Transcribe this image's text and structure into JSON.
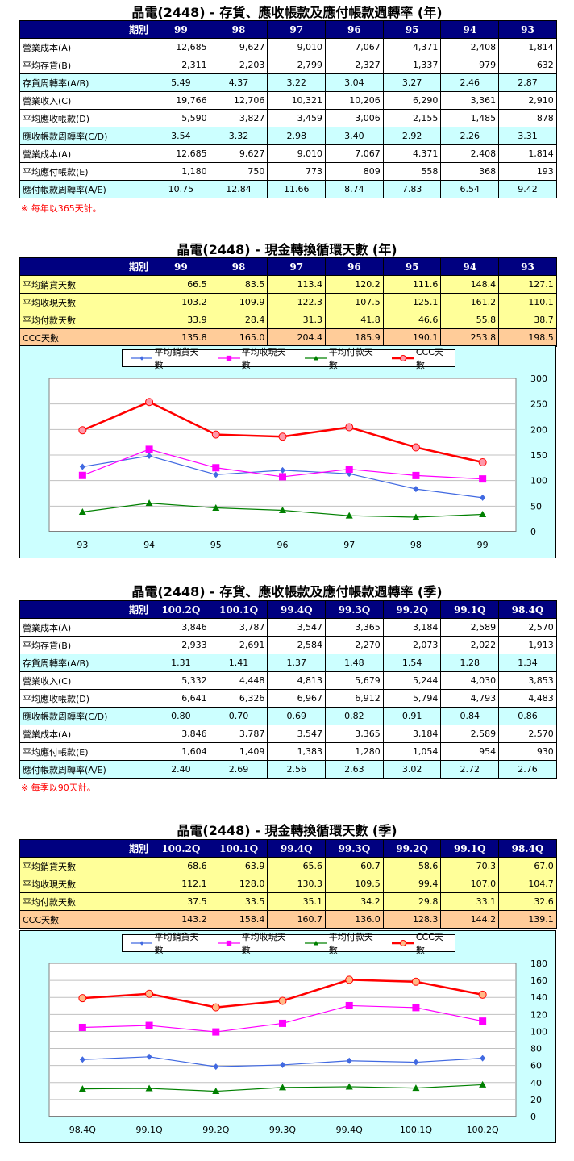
{
  "annual_turnover": {
    "title": "晶電(2448) - 存貨、應收帳款及應付帳款週轉率 (年)",
    "header_label": "期別",
    "periods": [
      "99",
      "98",
      "97",
      "96",
      "95",
      "94",
      "93"
    ],
    "rows": [
      {
        "label": "營業成本(A)",
        "style": "white",
        "values": [
          "12,685",
          "9,627",
          "9,010",
          "7,067",
          "4,371",
          "2,408",
          "1,814"
        ]
      },
      {
        "label": "平均存貨(B)",
        "style": "white",
        "values": [
          "2,311",
          "2,203",
          "2,799",
          "2,327",
          "1,337",
          "979",
          "632"
        ]
      },
      {
        "label": "存貨周轉率(A/B)",
        "style": "cyan",
        "values": [
          "5.49",
          "4.37",
          "3.22",
          "3.04",
          "3.27",
          "2.46",
          "2.87"
        ]
      },
      {
        "label": "營業收入(C)",
        "style": "white",
        "values": [
          "19,766",
          "12,706",
          "10,321",
          "10,206",
          "6,290",
          "3,361",
          "2,910"
        ]
      },
      {
        "label": "平均應收帳款(D)",
        "style": "white",
        "values": [
          "5,590",
          "3,827",
          "3,459",
          "3,006",
          "2,155",
          "1,485",
          "878"
        ]
      },
      {
        "label": "應收帳款周轉率(C/D)",
        "style": "cyan",
        "values": [
          "3.54",
          "3.32",
          "2.98",
          "3.40",
          "2.92",
          "2.26",
          "3.31"
        ]
      },
      {
        "label": "營業成本(A)",
        "style": "white",
        "values": [
          "12,685",
          "9,627",
          "9,010",
          "7,067",
          "4,371",
          "2,408",
          "1,814"
        ]
      },
      {
        "label": "平均應付帳款(E)",
        "style": "white",
        "values": [
          "1,180",
          "750",
          "773",
          "809",
          "558",
          "368",
          "193"
        ]
      },
      {
        "label": "應付帳款周轉率(A/E)",
        "style": "cyan",
        "values": [
          "10.75",
          "12.84",
          "11.66",
          "8.74",
          "7.83",
          "6.54",
          "9.42"
        ]
      }
    ],
    "note": "※ 每年以365天計。"
  },
  "annual_ccc": {
    "title": "晶電(2448) - 現金轉換循環天數 (年)",
    "header_label": "期別",
    "periods": [
      "99",
      "98",
      "97",
      "96",
      "95",
      "94",
      "93"
    ],
    "rows": [
      {
        "label": "平均銷貨天數",
        "style": "yellow",
        "values": [
          "66.5",
          "83.5",
          "113.4",
          "120.2",
          "111.6",
          "148.4",
          "127.1"
        ]
      },
      {
        "label": "平均收現天數",
        "style": "yellow",
        "values": [
          "103.2",
          "109.9",
          "122.3",
          "107.5",
          "125.1",
          "161.2",
          "110.1"
        ]
      },
      {
        "label": "平均付款天數",
        "style": "yellow",
        "values": [
          "33.9",
          "28.4",
          "31.3",
          "41.8",
          "46.6",
          "55.8",
          "38.7"
        ]
      },
      {
        "label": "CCC天數",
        "style": "orange",
        "values": [
          "135.8",
          "165.0",
          "204.4",
          "185.9",
          "190.1",
          "253.8",
          "198.5"
        ]
      }
    ]
  },
  "quarterly_turnover": {
    "title": "晶電(2448) - 存貨、應收帳款及應付帳款週轉率 (季)",
    "header_label": "期別",
    "periods": [
      "100.2Q",
      "100.1Q",
      "99.4Q",
      "99.3Q",
      "99.2Q",
      "99.1Q",
      "98.4Q"
    ],
    "rows": [
      {
        "label": "營業成本(A)",
        "style": "white",
        "values": [
          "3,846",
          "3,787",
          "3,547",
          "3,365",
          "3,184",
          "2,589",
          "2,570"
        ]
      },
      {
        "label": "平均存貨(B)",
        "style": "white",
        "values": [
          "2,933",
          "2,691",
          "2,584",
          "2,270",
          "2,073",
          "2,022",
          "1,913"
        ]
      },
      {
        "label": "存貨周轉率(A/B)",
        "style": "cyan",
        "values": [
          "1.31",
          "1.41",
          "1.37",
          "1.48",
          "1.54",
          "1.28",
          "1.34"
        ]
      },
      {
        "label": "營業收入(C)",
        "style": "white",
        "values": [
          "5,332",
          "4,448",
          "4,813",
          "5,679",
          "5,244",
          "4,030",
          "3,853"
        ]
      },
      {
        "label": "平均應收帳款(D)",
        "style": "white",
        "values": [
          "6,641",
          "6,326",
          "6,967",
          "6,912",
          "5,794",
          "4,793",
          "4,483"
        ]
      },
      {
        "label": "應收帳款周轉率(C/D)",
        "style": "cyan",
        "values": [
          "0.80",
          "0.70",
          "0.69",
          "0.82",
          "0.91",
          "0.84",
          "0.86"
        ]
      },
      {
        "label": "營業成本(A)",
        "style": "white",
        "values": [
          "3,846",
          "3,787",
          "3,547",
          "3,365",
          "3,184",
          "2,589",
          "2,570"
        ]
      },
      {
        "label": "平均應付帳款(E)",
        "style": "white",
        "values": [
          "1,604",
          "1,409",
          "1,383",
          "1,280",
          "1,054",
          "954",
          "930"
        ]
      },
      {
        "label": "應付帳款周轉率(A/E)",
        "style": "cyan",
        "values": [
          "2.40",
          "2.69",
          "2.56",
          "2.63",
          "3.02",
          "2.72",
          "2.76"
        ]
      }
    ],
    "note": "※ 每季以90天計。"
  },
  "quarterly_ccc": {
    "title": "晶電(2448) - 現金轉換循環天數 (季)",
    "header_label": "期別",
    "periods": [
      "100.2Q",
      "100.1Q",
      "99.4Q",
      "99.3Q",
      "99.2Q",
      "99.1Q",
      "98.4Q"
    ],
    "rows": [
      {
        "label": "平均銷貨天數",
        "style": "yellow",
        "values": [
          "68.6",
          "63.9",
          "65.6",
          "60.7",
          "58.6",
          "70.3",
          "67.0"
        ]
      },
      {
        "label": "平均收現天數",
        "style": "yellow",
        "values": [
          "112.1",
          "128.0",
          "130.3",
          "109.5",
          "99.4",
          "107.0",
          "104.7"
        ]
      },
      {
        "label": "平均付款天數",
        "style": "yellow",
        "values": [
          "37.5",
          "33.5",
          "35.1",
          "34.2",
          "29.8",
          "33.1",
          "32.6"
        ]
      },
      {
        "label": "CCC天數",
        "style": "orange",
        "values": [
          "143.2",
          "158.4",
          "160.7",
          "136.0",
          "128.3",
          "144.2",
          "139.1"
        ]
      }
    ]
  },
  "chart_data": [
    {
      "type": "line",
      "title": "",
      "categories": [
        "93",
        "94",
        "95",
        "96",
        "97",
        "98",
        "99"
      ],
      "series": [
        {
          "name": "平均銷貨天數",
          "color": "#4169e1",
          "marker": "diamond",
          "values": [
            127.1,
            148.4,
            111.6,
            120.2,
            113.4,
            83.5,
            66.5
          ]
        },
        {
          "name": "平均收現天數",
          "color": "#ff00ff",
          "marker": "square",
          "values": [
            110.1,
            161.2,
            125.1,
            107.5,
            122.3,
            109.9,
            103.2
          ]
        },
        {
          "name": "平均付款天數",
          "color": "#008000",
          "marker": "triangle",
          "values": [
            38.7,
            55.8,
            46.6,
            41.8,
            31.3,
            28.4,
            33.9
          ]
        },
        {
          "name": "CCC天數",
          "color": "#ff0000",
          "marker": "circle",
          "values": [
            198.5,
            253.8,
            190.1,
            185.9,
            204.4,
            165.0,
            135.8
          ]
        }
      ],
      "xlabel": "",
      "ylabel": "",
      "ylim": [
        0,
        300
      ],
      "yticks": [
        0,
        50,
        100,
        150,
        200,
        250,
        300
      ],
      "y_axis_position": "right",
      "grid": true,
      "legend_position": "top"
    },
    {
      "type": "line",
      "title": "",
      "categories": [
        "98.4Q",
        "99.1Q",
        "99.2Q",
        "99.3Q",
        "99.4Q",
        "100.1Q",
        "100.2Q"
      ],
      "series": [
        {
          "name": "平均銷貨天數",
          "color": "#4169e1",
          "marker": "diamond",
          "values": [
            67.0,
            70.3,
            58.6,
            60.7,
            65.6,
            63.9,
            68.6
          ]
        },
        {
          "name": "平均收現天數",
          "color": "#ff00ff",
          "marker": "square",
          "values": [
            104.7,
            107.0,
            99.4,
            109.5,
            130.3,
            128.0,
            112.1
          ]
        },
        {
          "name": "平均付款天數",
          "color": "#008000",
          "marker": "triangle",
          "values": [
            32.6,
            33.1,
            29.8,
            34.2,
            35.1,
            33.5,
            37.5
          ]
        },
        {
          "name": "CCC天數",
          "color": "#ff0000",
          "marker": "circle",
          "values": [
            139.1,
            144.2,
            128.3,
            136.0,
            160.7,
            158.4,
            143.2
          ]
        }
      ],
      "xlabel": "",
      "ylabel": "",
      "ylim": [
        0,
        180
      ],
      "yticks": [
        0,
        20,
        40,
        60,
        80,
        100,
        120,
        140,
        160,
        180
      ],
      "y_axis_position": "right",
      "grid": true,
      "legend_position": "top"
    }
  ]
}
